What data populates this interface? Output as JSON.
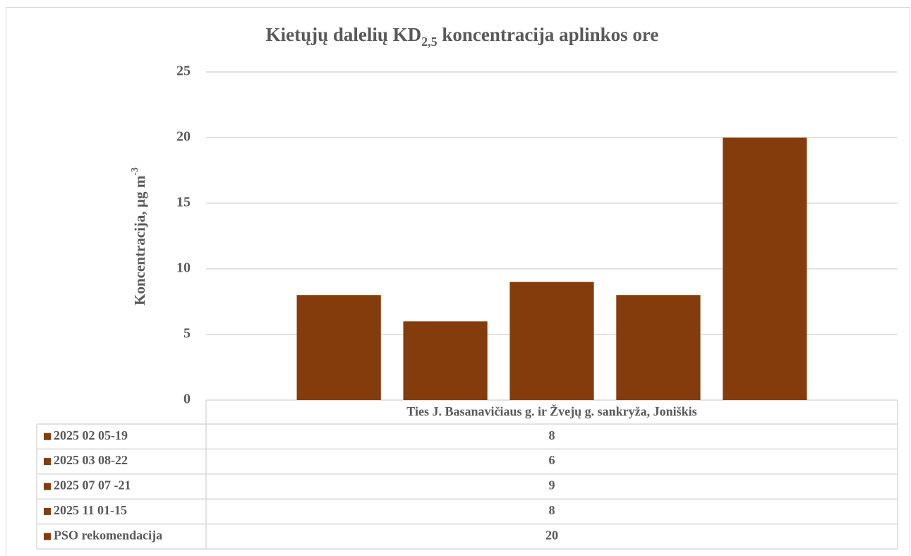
{
  "chart_data": {
    "type": "bar",
    "title": [
      "Kietųjų dalelių KD",
      "2,5",
      " koncentracija  aplinkos ore"
    ],
    "y_label": [
      "Koncentracija, µg m",
      "-3"
    ],
    "categories": [
      "Ties J. Basanavičiaus g. ir Žvejų g. sankryža, Joniškis"
    ],
    "series": [
      {
        "name": "2025 02 05-19",
        "color": "#843c0c",
        "values": [
          8
        ]
      },
      {
        "name": "2025 03 08-22",
        "color": "#843c0c",
        "values": [
          6
        ]
      },
      {
        "name": "2025 07 07 -21",
        "color": "#843c0c",
        "values": [
          9
        ]
      },
      {
        "name": "2025 11 01-15",
        "color": "#843c0c",
        "values": [
          8
        ]
      },
      {
        "name": "PSO rekomendacija",
        "color": "#843c0c",
        "values": [
          20
        ]
      }
    ],
    "ylim": [
      0,
      25
    ],
    "yticks": [
      0,
      5,
      10,
      15,
      20,
      25
    ],
    "grid": true,
    "data_table": true
  }
}
